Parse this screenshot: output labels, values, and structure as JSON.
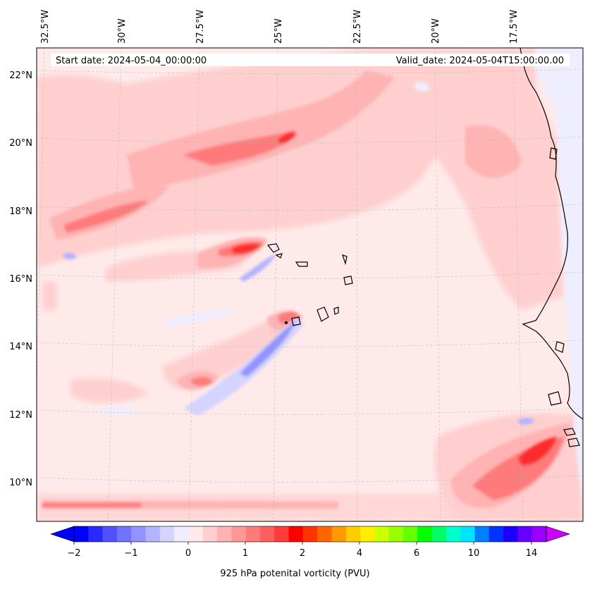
{
  "header": {
    "start_date": "Start date: 2024-05-04_00:00:00",
    "valid_date": "Valid_date: 2024-05-04T15:00:00.00"
  },
  "lon_labels": [
    "32.5°W",
    "30°W",
    "27.5°W",
    "25°W",
    "22.5°W",
    "20°W",
    "17.5°W"
  ],
  "lat_labels": [
    "22°N",
    "20°N",
    "18°N",
    "16°N",
    "14°N",
    "12°N",
    "10°N"
  ],
  "colorbar": {
    "title": "925 hPa potenital vorticity (PVU)",
    "ticks": [
      "−2",
      "−1",
      "0",
      "1",
      "2",
      "4",
      "6",
      "10",
      "14"
    ],
    "colors": [
      "#0000ff",
      "#2a2aff",
      "#5050ff",
      "#7272ff",
      "#9393ff",
      "#b3b3ff",
      "#d4d4ff",
      "#eeeeff",
      "#ffeaea",
      "#ffcfcf",
      "#ffb3b3",
      "#ff9797",
      "#ff7a7a",
      "#ff5e5e",
      "#ff3a3a",
      "#ff0000",
      "#ff3300",
      "#ff6600",
      "#ff9900",
      "#ffcc00",
      "#ffee00",
      "#ccff00",
      "#99ff00",
      "#66ff00",
      "#00ff00",
      "#00ff66",
      "#00ffcc",
      "#00e5ff",
      "#0080ff",
      "#0033ff",
      "#1a00ff",
      "#6600ff",
      "#9900ff"
    ],
    "extend_low_color": "#0000ff",
    "extend_high_color": "#cc00ff"
  },
  "field_colors": {
    "background": "#ffeaea",
    "light_red": "#ffcfcf",
    "mid_red": "#ffb3b3",
    "red": "#ff7a7a",
    "strong_red": "#ff3a3a",
    "max_red": "#ff0000",
    "light_blue": "#eeeeff",
    "blue": "#b3b3ff",
    "strong_blue": "#7272ff"
  }
}
